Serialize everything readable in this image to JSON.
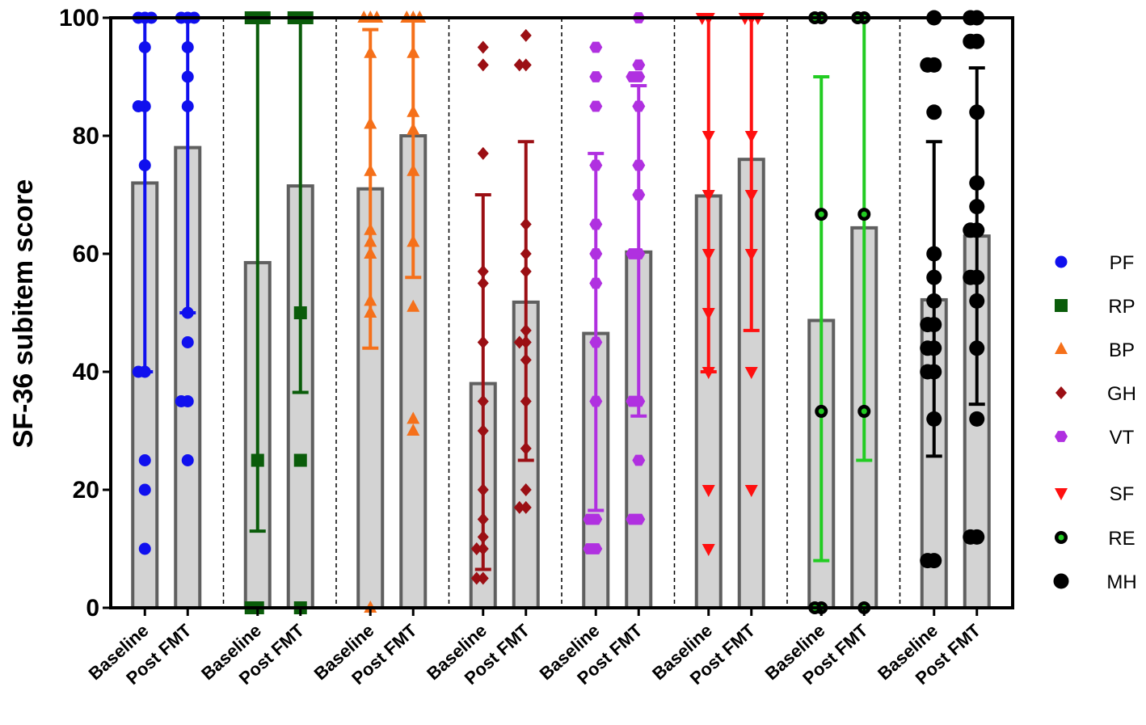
{
  "chart_data": {
    "type": "bar",
    "ylabel": "SF-36 subitem score",
    "xlabel": "",
    "ylim": [
      0,
      100
    ],
    "yticks": [
      0,
      20,
      40,
      60,
      80,
      100
    ],
    "conditions": [
      "Baseline",
      "Post FMT"
    ],
    "groups": [
      {
        "name": "PF",
        "color": "#1010ee",
        "marker": "circle",
        "baseline": {
          "label": "Baseline",
          "mean": 72,
          "err": [
            40,
            100
          ],
          "points": [
            100,
            100,
            100,
            95,
            85,
            85,
            75,
            40,
            40,
            25,
            20,
            10
          ]
        },
        "post": {
          "label": "Post FMT",
          "mean": 78,
          "err": [
            50,
            100
          ],
          "points": [
            100,
            100,
            100,
            95,
            90,
            85,
            50,
            45,
            35,
            35,
            25
          ]
        }
      },
      {
        "name": "RP",
        "color": "#0a5c0a",
        "marker": "square",
        "baseline": {
          "label": "Baseline",
          "mean": 58.5,
          "err": [
            13,
            100
          ],
          "points": [
            100,
            100,
            100,
            25,
            0,
            0
          ]
        },
        "post": {
          "label": "Post FMT",
          "mean": 71.5,
          "err": [
            36.5,
            100
          ],
          "points": [
            100,
            100,
            100,
            50,
            25,
            0
          ]
        }
      },
      {
        "name": "BP",
        "color": "#f5701a",
        "marker": "triangle-up",
        "baseline": {
          "label": "Baseline",
          "mean": 71,
          "err": [
            44,
            98
          ],
          "points": [
            100,
            100,
            100,
            94,
            82,
            74,
            64,
            62,
            60,
            52,
            50,
            0
          ]
        },
        "post": {
          "label": "Post FMT",
          "mean": 80,
          "err": [
            56,
            100
          ],
          "points": [
            100,
            100,
            100,
            94,
            84,
            81,
            74,
            62,
            51,
            32,
            30
          ]
        }
      },
      {
        "name": "GH",
        "color": "#9b0f14",
        "marker": "diamond",
        "baseline": {
          "label": "Baseline",
          "mean": 38,
          "err": [
            6.5,
            70
          ],
          "points": [
            95,
            92,
            77,
            57,
            55,
            45,
            35,
            30,
            20,
            15,
            12,
            10,
            10,
            5,
            5
          ]
        },
        "post": {
          "label": "Post FMT",
          "mean": 51.8,
          "err": [
            25,
            79
          ],
          "points": [
            97,
            92,
            92,
            65,
            60,
            57,
            47,
            45,
            45,
            42,
            35,
            27,
            20,
            17,
            17
          ]
        }
      },
      {
        "name": "VT",
        "color": "#b030e0",
        "marker": "hexagon",
        "baseline": {
          "label": "Baseline",
          "mean": 46.5,
          "err": [
            16.5,
            77
          ],
          "points": [
            95,
            90,
            85,
            75,
            65,
            60,
            55,
            45,
            35,
            15,
            15,
            10,
            10
          ]
        },
        "post": {
          "label": "Post FMT",
          "mean": 60.3,
          "err": [
            32.5,
            88.5
          ],
          "points": [
            100,
            92,
            90,
            90,
            85,
            75,
            70,
            60,
            60,
            35,
            35,
            25,
            15,
            15
          ]
        }
      },
      {
        "name": "SF",
        "color": "#ff1010",
        "marker": "triangle-down",
        "baseline": {
          "label": "Baseline",
          "mean": 69.8,
          "err": [
            40,
            100
          ],
          "points": [
            100,
            100,
            80,
            70,
            60,
            50,
            40,
            20,
            10
          ]
        },
        "post": {
          "label": "Post FMT",
          "mean": 76,
          "err": [
            47,
            100
          ],
          "points": [
            100,
            100,
            100,
            80,
            70,
            60,
            40,
            20
          ]
        }
      },
      {
        "name": "RE",
        "color": "#22cc22",
        "marker": "circle-open",
        "baseline": {
          "label": "Baseline",
          "mean": 48.7,
          "err": [
            8,
            90
          ],
          "points": [
            100,
            100,
            66.7,
            33.3,
            0,
            0
          ]
        },
        "post": {
          "label": "Post FMT",
          "mean": 64.4,
          "err": [
            25,
            100
          ],
          "points": [
            100,
            100,
            66.7,
            33.3,
            0
          ]
        }
      },
      {
        "name": "MH",
        "color": "#000000",
        "marker": "circle-large",
        "baseline": {
          "label": "Baseline",
          "mean": 52.2,
          "err": [
            25.7,
            79
          ],
          "points": [
            100,
            92,
            92,
            84,
            60,
            56,
            52,
            48,
            48,
            44,
            44,
            40,
            40,
            32,
            8,
            8
          ]
        },
        "post": {
          "label": "Post FMT",
          "mean": 63,
          "err": [
            34.5,
            91.5
          ],
          "points": [
            100,
            100,
            96,
            96,
            84,
            72,
            68,
            64,
            64,
            56,
            56,
            52,
            44,
            32,
            12,
            12
          ]
        }
      }
    ],
    "legend": {
      "position": "right",
      "entries": [
        "PF",
        "RP",
        "BP",
        "GH",
        "VT",
        "SF",
        "RE",
        "MH"
      ]
    }
  }
}
